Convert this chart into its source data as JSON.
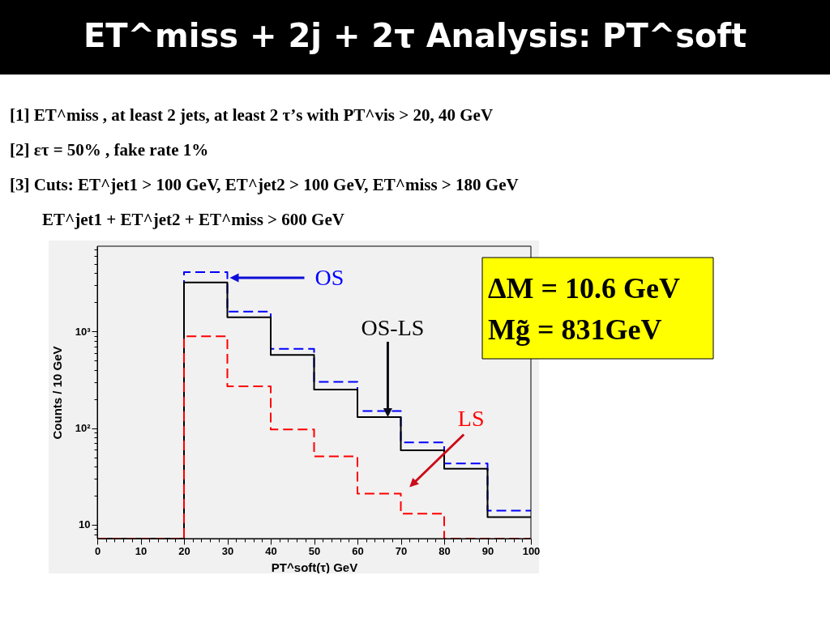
{
  "chart_data": {
    "type": "histogram",
    "title": "ET^miss + 2j + 2τ Analysis: PT^soft",
    "xlabel": "PT^soft(τ) GeV",
    "ylabel": "Counts / 10 GeV",
    "annotations": [
      "[1] ET^miss , at least 2 jets, at least 2 τ’s with PT^vis > 20, 40 GeV",
      "[2] ετ = 50% , fake rate 1%",
      "[3] Cuts: ET^jet1 > 100 GeV, ET^jet2 > 100 GeV, ET^miss > 180 GeV",
      "ET^jet1 + ET^jet2 + ET^miss > 600 GeV",
      "ΔM = 10.6 GeV",
      "Mg̃ = 831GeV"
    ],
    "bins": [
      0,
      10,
      20,
      30,
      40,
      50,
      60,
      70,
      80,
      90,
      100
    ],
    "series": [
      {
        "name": "OS",
        "color": "#0000ff",
        "line_style": "dashed",
        "values": [
          null,
          null,
          4100,
          1600,
          660,
          300,
          150,
          71,
          43,
          14
        ]
      },
      {
        "name": "OS-LS",
        "color": "#000000",
        "line_style": "solid",
        "values": [
          null,
          null,
          3200,
          1400,
          570,
          250,
          130,
          59,
          38,
          12
        ]
      },
      {
        "name": "LS",
        "color": "#ff0000",
        "line_style": "dashed",
        "values": [
          null,
          null,
          890,
          270,
          97,
          51,
          21,
          13,
          null,
          null
        ]
      }
    ],
    "xlim": [
      0,
      100
    ],
    "ylim": [
      7.2,
      7600
    ],
    "xticks": [
      0,
      {
        "value": 2,
        "label": null
      },
      {
        "value": 4,
        "label": null
      },
      {
        "value": 6,
        "label": null
      },
      {
        "value": 8,
        "label": null
      },
      10,
      {
        "value": 12,
        "label": null
      },
      {
        "value": 14,
        "label": null
      },
      {
        "value": 16,
        "label": null
      },
      {
        "value": 18,
        "label": null
      },
      20,
      {
        "value": 22,
        "label": null
      },
      {
        "value": 24,
        "label": null
      },
      {
        "value": 26,
        "label": null
      },
      {
        "value": 28,
        "label": null
      },
      30,
      {
        "value": 32,
        "label": null
      },
      {
        "value": 34,
        "label": null
      },
      {
        "value": 36,
        "label": null
      },
      {
        "value": 38,
        "label": null
      },
      40,
      {
        "value": 42,
        "label": null
      },
      {
        "value": 44,
        "label": null
      },
      {
        "value": 46,
        "label": null
      },
      {
        "value": 48,
        "label": null
      },
      50,
      {
        "value": 52,
        "label": null
      },
      {
        "value": 54,
        "label": null
      },
      {
        "value": 56,
        "label": null
      },
      {
        "value": 58,
        "label": null
      },
      60,
      {
        "value": 62,
        "label": null
      },
      {
        "value": 64,
        "label": null
      },
      {
        "value": 66,
        "label": null
      },
      {
        "value": 68,
        "label": null
      },
      70,
      {
        "value": 72,
        "label": null
      },
      {
        "value": 74,
        "label": null
      },
      {
        "value": 76,
        "label": null
      },
      {
        "value": 78,
        "label": null
      },
      80,
      {
        "value": 82,
        "label": null
      },
      {
        "value": 84,
        "label": null
      },
      {
        "value": 86,
        "label": null
      },
      {
        "value": 88,
        "label": null
      },
      90,
      {
        "value": 92,
        "label": null
      },
      {
        "value": 94,
        "label": null
      },
      {
        "value": 96,
        "label": null
      },
      {
        "value": 98,
        "label": null
      },
      100
    ],
    "yticks": [
      {
        "value": 8,
        "label": null
      },
      {
        "value": 9,
        "label": null
      },
      10,
      {
        "value": 20,
        "label": null
      },
      {
        "value": 30,
        "label": null
      },
      {
        "value": 40,
        "label": null
      },
      {
        "value": 50,
        "label": null
      },
      {
        "value": 60,
        "label": null
      },
      {
        "value": 70,
        "label": null
      },
      {
        "value": 80,
        "label": null
      },
      {
        "value": 90,
        "label": null
      },
      {
        "value": 100,
        "label": "10²"
      },
      {
        "value": 200,
        "label": null
      },
      {
        "value": 300,
        "label": null
      },
      {
        "value": 400,
        "label": null
      },
      {
        "value": 500,
        "label": null
      },
      {
        "value": 600,
        "label": null
      },
      {
        "value": 700,
        "label": null
      },
      {
        "value": 800,
        "label": null
      },
      {
        "value": 900,
        "label": null
      },
      {
        "value": 1000,
        "label": "10³"
      },
      {
        "value": 2000,
        "label": null
      },
      {
        "value": 3000,
        "label": null
      },
      {
        "value": 4000,
        "label": null
      },
      {
        "value": 5000,
        "label": null
      },
      {
        "value": 6000,
        "label": null
      },
      {
        "value": 7000,
        "label": null
      }
    ],
    "log": "y"
  }
}
